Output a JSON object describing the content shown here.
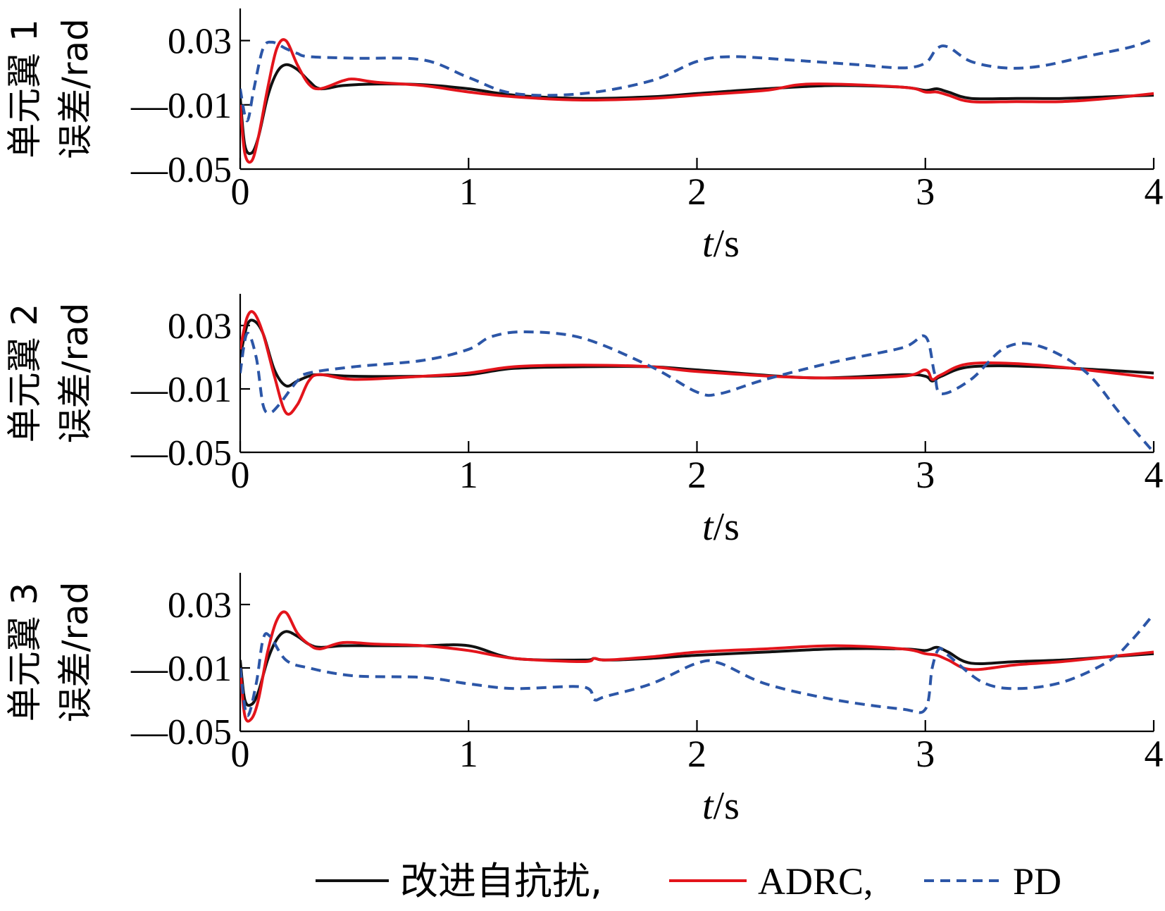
{
  "chart_data": [
    {
      "type": "line",
      "ylabel_lines": [
        "单元翼 1",
        "误差/rad"
      ],
      "xlabel_var": "t",
      "xlabel_unit": "/s",
      "xlim": [
        0,
        4
      ],
      "ylim": [
        -0.05,
        0.05
      ],
      "xticks": [
        "0",
        "1",
        "2",
        "3",
        "4"
      ],
      "yticks": [
        {
          "v": 0.03,
          "label": "0.03"
        },
        {
          "v": -0.01,
          "label": "—0.01"
        },
        {
          "v": -0.05,
          "label": "—0.05"
        }
      ],
      "series": [
        {
          "name": "改进自抗扰",
          "color": "#111111",
          "dash": "none",
          "x": [
            0,
            0.02,
            0.05,
            0.08,
            0.12,
            0.16,
            0.2,
            0.25,
            0.3,
            0.35,
            0.45,
            0.6,
            0.8,
            1.0,
            1.2,
            1.5,
            1.8,
            2.0,
            2.3,
            2.6,
            2.9,
            3.0,
            3.05,
            3.1,
            3.2,
            3.4,
            3.6,
            3.8,
            4.0
          ],
          "y": [
            -0.005,
            -0.035,
            -0.04,
            -0.03,
            -0.005,
            0.01,
            0.015,
            0.012,
            0.005,
            0.0,
            0.002,
            0.003,
            0.0025,
            0.0,
            -0.004,
            -0.006,
            -0.005,
            -0.003,
            0.0,
            0.002,
            0.001,
            -0.001,
            0.0,
            -0.002,
            -0.006,
            -0.006,
            -0.006,
            -0.005,
            -0.004
          ]
        },
        {
          "name": "ADRC",
          "color": "#e3141b",
          "dash": "none",
          "x": [
            0,
            0.02,
            0.05,
            0.08,
            0.12,
            0.16,
            0.2,
            0.25,
            0.3,
            0.35,
            0.45,
            0.5,
            0.6,
            0.8,
            1.0,
            1.2,
            1.5,
            1.8,
            2.0,
            2.3,
            2.5,
            2.9,
            3.0,
            3.05,
            3.1,
            3.2,
            3.4,
            3.6,
            3.8,
            4.0
          ],
          "y": [
            -0.01,
            -0.04,
            -0.045,
            -0.03,
            0.0,
            0.025,
            0.03,
            0.015,
            0.003,
            0.0,
            0.005,
            0.006,
            0.004,
            0.002,
            -0.002,
            -0.005,
            -0.007,
            -0.006,
            -0.004,
            -0.001,
            0.003,
            0.001,
            -0.002,
            -0.002,
            -0.004,
            -0.008,
            -0.008,
            -0.008,
            -0.006,
            -0.003
          ]
        },
        {
          "name": "PD",
          "color": "#2c56a7",
          "dash": "14,9",
          "x": [
            0,
            0.03,
            0.06,
            0.1,
            0.14,
            0.2,
            0.25,
            0.3,
            0.5,
            0.8,
            1.0,
            1.2,
            1.5,
            1.8,
            2.0,
            2.15,
            2.4,
            2.7,
            2.9,
            3.0,
            3.05,
            3.1,
            3.2,
            3.35,
            3.5,
            3.7,
            3.9,
            4.0
          ],
          "y": [
            0.0,
            -0.02,
            0.0,
            0.025,
            0.029,
            0.025,
            0.022,
            0.02,
            0.019,
            0.018,
            0.007,
            -0.003,
            -0.003,
            0.005,
            0.017,
            0.02,
            0.018,
            0.015,
            0.013,
            0.016,
            0.025,
            0.026,
            0.017,
            0.013,
            0.014,
            0.02,
            0.026,
            0.031
          ]
        }
      ]
    },
    {
      "type": "line",
      "ylabel_lines": [
        "单元翼 2",
        "误差/rad"
      ],
      "xlabel_var": "t",
      "xlabel_unit": "/s",
      "xlim": [
        0,
        4
      ],
      "ylim": [
        -0.05,
        0.05
      ],
      "xticks": [
        "0",
        "1",
        "2",
        "3",
        "4"
      ],
      "yticks": [
        {
          "v": 0.03,
          "label": "0.03"
        },
        {
          "v": -0.01,
          "label": "—0.01"
        },
        {
          "v": -0.05,
          "label": "—0.05"
        }
      ],
      "series": [
        {
          "name": "改进自抗扰",
          "color": "#111111",
          "dash": "none",
          "x": [
            0,
            0.03,
            0.06,
            0.1,
            0.15,
            0.2,
            0.25,
            0.3,
            0.35,
            0.5,
            0.8,
            1.0,
            1.2,
            1.5,
            1.8,
            2.0,
            2.5,
            2.9,
            3.0,
            3.03,
            3.07,
            3.2,
            3.5,
            4.0
          ],
          "y": [
            0.01,
            0.03,
            0.033,
            0.025,
            0.002,
            -0.008,
            -0.005,
            -0.002,
            -0.001,
            -0.002,
            -0.002,
            -0.001,
            0.003,
            0.004,
            0.004,
            0.002,
            -0.003,
            -0.001,
            -0.002,
            -0.005,
            -0.002,
            0.004,
            0.004,
            0.0
          ]
        },
        {
          "name": "ADRC",
          "color": "#e3141b",
          "dash": "none",
          "x": [
            0,
            0.03,
            0.06,
            0.1,
            0.15,
            0.2,
            0.25,
            0.3,
            0.35,
            0.5,
            0.8,
            1.0,
            1.2,
            1.5,
            1.8,
            2.0,
            2.5,
            2.9,
            3.0,
            3.03,
            3.07,
            3.2,
            3.5,
            4.0
          ],
          "y": [
            0.015,
            0.035,
            0.038,
            0.025,
            -0.002,
            -0.025,
            -0.02,
            -0.005,
            -0.001,
            -0.004,
            -0.002,
            0.0,
            0.004,
            0.005,
            0.004,
            0.001,
            -0.003,
            -0.002,
            0.002,
            -0.004,
            -0.001,
            0.006,
            0.005,
            -0.003
          ]
        },
        {
          "name": "PD",
          "color": "#2c56a7",
          "dash": "14,9",
          "x": [
            0,
            0.03,
            0.07,
            0.1,
            0.13,
            0.17,
            0.25,
            0.3,
            0.5,
            0.8,
            1.0,
            1.1,
            1.25,
            1.5,
            1.8,
            2.0,
            2.1,
            2.3,
            2.6,
            2.9,
            3.0,
            3.04,
            3.07,
            3.2,
            3.35,
            3.5,
            3.7,
            3.85,
            4.0
          ],
          "y": [
            0.0,
            0.025,
            0.01,
            -0.02,
            -0.025,
            -0.02,
            -0.005,
            0.0,
            0.004,
            0.008,
            0.015,
            0.023,
            0.026,
            0.022,
            0.004,
            -0.012,
            -0.013,
            -0.004,
            0.007,
            0.016,
            0.023,
            0.0,
            -0.013,
            -0.004,
            0.016,
            0.017,
            0.001,
            -0.025,
            -0.05
          ]
        }
      ]
    },
    {
      "type": "line",
      "ylabel_lines": [
        "单元翼 3",
        "误差/rad"
      ],
      "xlabel_var": "t",
      "xlabel_unit": "/s",
      "xlim": [
        0,
        4
      ],
      "ylim": [
        -0.05,
        0.05
      ],
      "xticks": [
        "0",
        "1",
        "2",
        "3",
        "4"
      ],
      "yticks": [
        {
          "v": 0.03,
          "label": "0.03"
        },
        {
          "v": -0.01,
          "label": "—0.01"
        },
        {
          "v": -0.05,
          "label": "—0.05"
        }
      ],
      "series": [
        {
          "name": "改进自抗扰",
          "color": "#111111",
          "dash": "none",
          "x": [
            0,
            0.02,
            0.05,
            0.08,
            0.12,
            0.16,
            0.2,
            0.25,
            0.3,
            0.35,
            0.45,
            0.6,
            0.8,
            1.0,
            1.2,
            1.5,
            1.55,
            1.6,
            1.8,
            2.0,
            2.3,
            2.6,
            2.9,
            3.0,
            3.05,
            3.1,
            3.2,
            3.4,
            3.6,
            3.8,
            4.0
          ],
          "y": [
            -0.005,
            -0.03,
            -0.033,
            -0.025,
            -0.005,
            0.008,
            0.013,
            0.01,
            0.005,
            0.003,
            0.004,
            0.004,
            0.004,
            0.004,
            -0.004,
            -0.005,
            -0.004,
            -0.005,
            -0.004,
            -0.002,
            0.0,
            0.002,
            0.002,
            0.001,
            0.003,
            0.0,
            -0.007,
            -0.006,
            -0.005,
            -0.003,
            -0.001
          ]
        },
        {
          "name": "ADRC",
          "color": "#e3141b",
          "dash": "none",
          "x": [
            0,
            0.02,
            0.05,
            0.08,
            0.12,
            0.16,
            0.2,
            0.25,
            0.3,
            0.35,
            0.45,
            0.6,
            0.8,
            1.0,
            1.2,
            1.5,
            1.55,
            1.6,
            1.8,
            2.0,
            2.3,
            2.6,
            2.9,
            3.0,
            3.05,
            3.1,
            3.2,
            3.4,
            3.6,
            3.8,
            4.0
          ],
          "y": [
            -0.01,
            -0.04,
            -0.042,
            -0.03,
            0.0,
            0.02,
            0.025,
            0.012,
            0.005,
            0.002,
            0.006,
            0.005,
            0.004,
            0.001,
            -0.004,
            -0.006,
            -0.004,
            -0.005,
            -0.003,
            0.0,
            0.002,
            0.004,
            0.002,
            -0.001,
            -0.002,
            -0.005,
            -0.011,
            -0.008,
            -0.006,
            -0.003,
            0.0
          ]
        },
        {
          "name": "PD",
          "color": "#2c56a7",
          "dash": "14,9",
          "x": [
            0,
            0.03,
            0.07,
            0.1,
            0.13,
            0.2,
            0.3,
            0.5,
            0.8,
            1.0,
            1.2,
            1.5,
            1.55,
            1.6,
            1.8,
            2.0,
            2.1,
            2.3,
            2.6,
            2.9,
            3.0,
            3.03,
            3.06,
            3.1,
            3.25,
            3.4,
            3.6,
            3.8,
            3.9,
            4.0
          ],
          "y": [
            -0.01,
            -0.04,
            -0.02,
            0.008,
            0.01,
            -0.005,
            -0.01,
            -0.015,
            -0.016,
            -0.02,
            -0.023,
            -0.022,
            -0.03,
            -0.028,
            -0.02,
            -0.007,
            -0.007,
            -0.02,
            -0.03,
            -0.036,
            -0.036,
            -0.01,
            0.002,
            -0.002,
            -0.019,
            -0.023,
            -0.019,
            -0.006,
            0.007,
            0.024
          ]
        }
      ]
    }
  ],
  "legend": [
    {
      "label": "改进自抗扰,",
      "color": "#111111",
      "dash": "none"
    },
    {
      "label": "ADRC,",
      "color": "#e3141b",
      "dash": "none"
    },
    {
      "label": "PD",
      "color": "#2c56a7",
      "dash": "14,9"
    }
  ]
}
